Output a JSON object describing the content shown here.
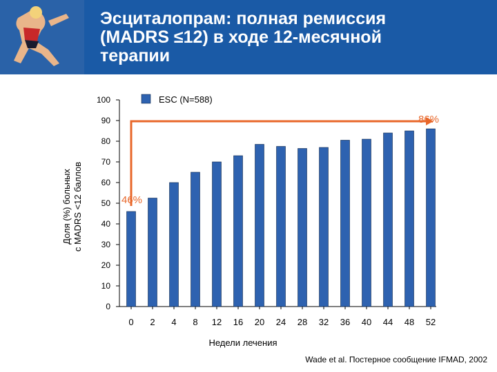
{
  "title": "Эсциталопрам: полная ремиссия\n(MADRS ≤12) в ходе 12-месячной\nтерапии",
  "citation": "Wade et al. Постерное сообщение IFMAD, 2002",
  "colors": {
    "header": "#1a5aa6",
    "bar": "#2e62b0",
    "annotation": "#e8672a"
  },
  "chart_data": {
    "type": "bar",
    "categories": [
      "0",
      "2",
      "4",
      "8",
      "12",
      "16",
      "20",
      "24",
      "28",
      "32",
      "36",
      "40",
      "44",
      "48",
      "52"
    ],
    "series": [
      {
        "name": "ESC (N=588)",
        "values": [
          46,
          52.5,
          60,
          65,
          70,
          73,
          78.5,
          77.5,
          76.5,
          77,
          80.5,
          81,
          84,
          85,
          86
        ]
      }
    ],
    "xlabel": "Недели лечения",
    "ylabel_lines": [
      "Доля (%) больных",
      "с MADRS <12 баллов"
    ],
    "ylim": [
      0,
      100
    ],
    "yticks": [
      "0",
      "10",
      "20",
      "30",
      "40",
      "50",
      "60",
      "70",
      "80",
      "90",
      "100"
    ],
    "annotations": {
      "start": "46%",
      "end": "86%"
    },
    "legend_position": "top",
    "grid": false
  }
}
